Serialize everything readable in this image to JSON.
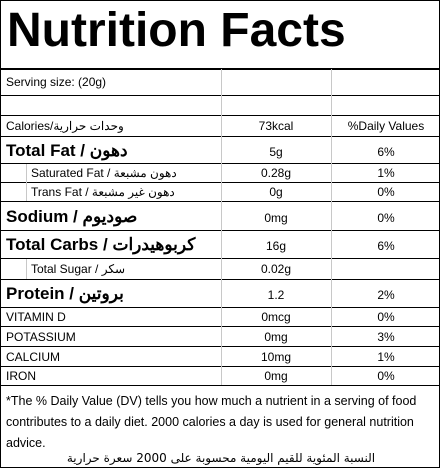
{
  "title": "Nutrition Facts",
  "serving": {
    "label": "Serving size:  (20g)"
  },
  "header_row": {
    "nutrient": "Calories/وحدات حرارية",
    "amount": "73kcal",
    "dv": "%Daily Values"
  },
  "rows": [
    {
      "name": "Total Fat / دهون",
      "amount": "5g",
      "dv": "6%"
    },
    {
      "name": "Saturated Fat / دهون مشبعة",
      "amount": "0.28g",
      "dv": "1%"
    },
    {
      "name": "Trans Fat / دهون غير مشبعة",
      "amount": "0g",
      "dv": "0%"
    },
    {
      "name": "Sodium / صوديوم",
      "amount": "0mg",
      "dv": "0%"
    },
    {
      "name": "Total Carbs / كربوهيدرات",
      "amount": "16g",
      "dv": "6%"
    },
    {
      "name": "Total Sugar / سكر",
      "amount": "0.02g",
      "dv": ""
    },
    {
      "name": "Protein / بروتين",
      "amount": "1.2",
      "dv": "2%"
    },
    {
      "name": "VITAMIN D",
      "amount": "0mcg",
      "dv": "0%"
    },
    {
      "name": "POTASSIUM",
      "amount": "0mg",
      "dv": "3%"
    },
    {
      "name": "CALCIUM",
      "amount": "10mg",
      "dv": "1%"
    },
    {
      "name": "IRON",
      "amount": "0mg",
      "dv": "0%"
    }
  ],
  "footnote": "*The % Daily Value (DV) tells you how much a nutrient in a serving of food contributes to a daily diet. 2000 calories a day is used for general nutrition advice.",
  "footnote_arabic": "النسبة المئوية للقيم اليومية محسوبة على 2000 سعرة حرارية"
}
